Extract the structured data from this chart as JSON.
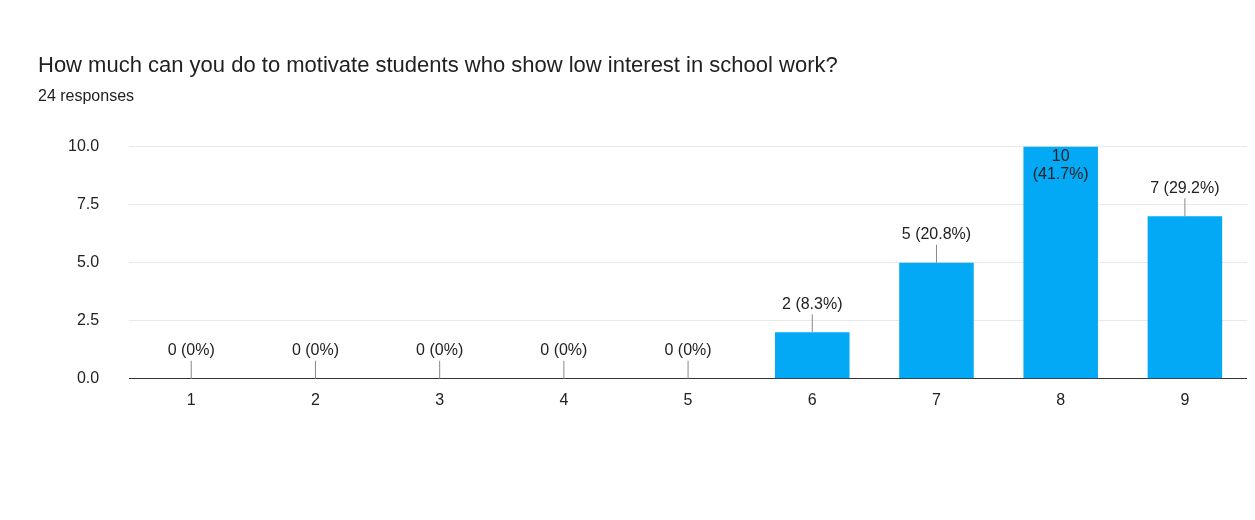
{
  "chart_data": {
    "type": "bar",
    "title": "How much can you do to motivate students who show low interest in school work?",
    "subtitle": "24 responses",
    "categories": [
      "1",
      "2",
      "3",
      "4",
      "5",
      "6",
      "7",
      "8",
      "9"
    ],
    "values": [
      0,
      0,
      0,
      0,
      0,
      2,
      5,
      10,
      7
    ],
    "value_labels": [
      "0 (0%)",
      "0 (0%)",
      "0 (0%)",
      "0 (0%)",
      "0 (0%)",
      "2 (8.3%)",
      "5 (20.8%)",
      "10 (41.7%)",
      "7 (29.2%)"
    ],
    "color": "#03a9f4",
    "ylim": [
      0,
      10
    ],
    "yticks": [
      {
        "value": 0,
        "label": "0.0"
      },
      {
        "value": 2.5,
        "label": "2.5"
      },
      {
        "value": 5,
        "label": "5.0"
      },
      {
        "value": 7.5,
        "label": "7.5"
      },
      {
        "value": 10,
        "label": "10.0"
      }
    ],
    "grid": "y",
    "legend": false
  }
}
